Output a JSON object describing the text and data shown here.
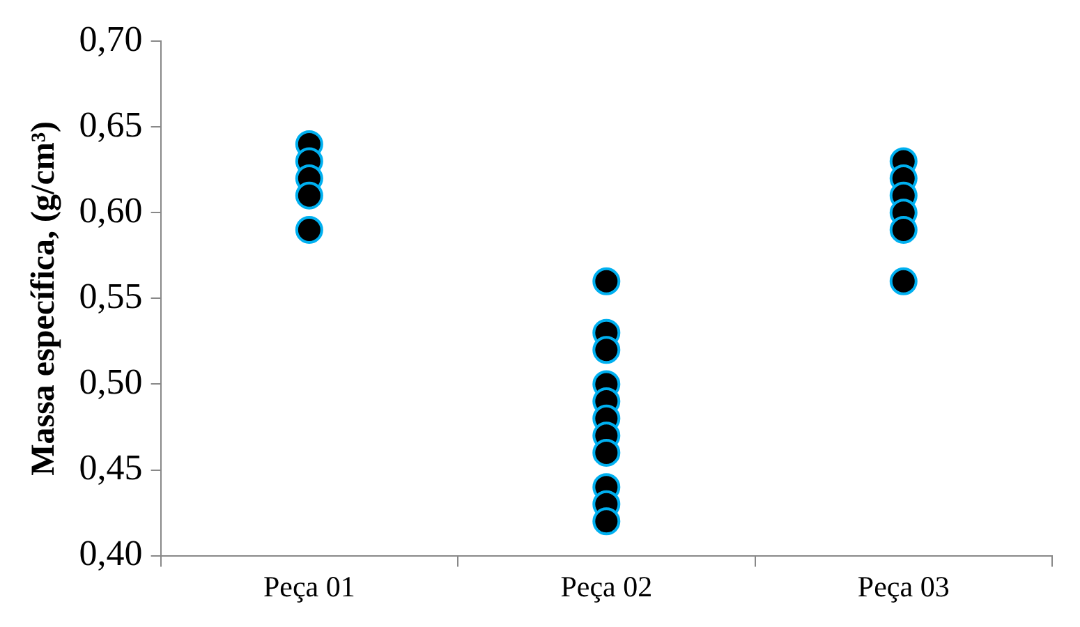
{
  "chart_data": {
    "type": "scatter",
    "ylabel": "Massa específica, (g/cm³)",
    "categories": [
      "Peça 01",
      "Peça 02",
      "Peça 03"
    ],
    "series": [
      {
        "color": "#000000",
        "x": [
          "Peça 01",
          "Peça 01",
          "Peça 01",
          "Peça 01",
          "Peça 01",
          "Peça 02",
          "Peça 02",
          "Peça 02",
          "Peça 02",
          "Peça 02",
          "Peça 02",
          "Peça 02",
          "Peça 02",
          "Peça 02",
          "Peça 02",
          "Peça 02",
          "Peça 03",
          "Peça 03",
          "Peça 03",
          "Peça 03",
          "Peça 03",
          "Peça 03"
        ],
        "values": [
          0.64,
          0.63,
          0.62,
          0.61,
          0.59,
          0.56,
          0.53,
          0.52,
          0.5,
          0.49,
          0.48,
          0.47,
          0.46,
          0.44,
          0.43,
          0.42,
          0.63,
          0.62,
          0.61,
          0.6,
          0.59,
          0.56
        ]
      }
    ],
    "ylim": [
      0.4,
      0.7
    ],
    "yticks": [
      {
        "value": 0.4,
        "label": "0,40"
      },
      {
        "value": 0.45,
        "label": "0,45"
      },
      {
        "value": 0.5,
        "label": "0,50"
      },
      {
        "value": 0.55,
        "label": "0,55"
      },
      {
        "value": 0.6,
        "label": "0,60"
      },
      {
        "value": 0.65,
        "label": "0,65"
      },
      {
        "value": 0.7,
        "label": "0,70"
      }
    ],
    "grid": false,
    "legend": false,
    "marker": "circle"
  }
}
